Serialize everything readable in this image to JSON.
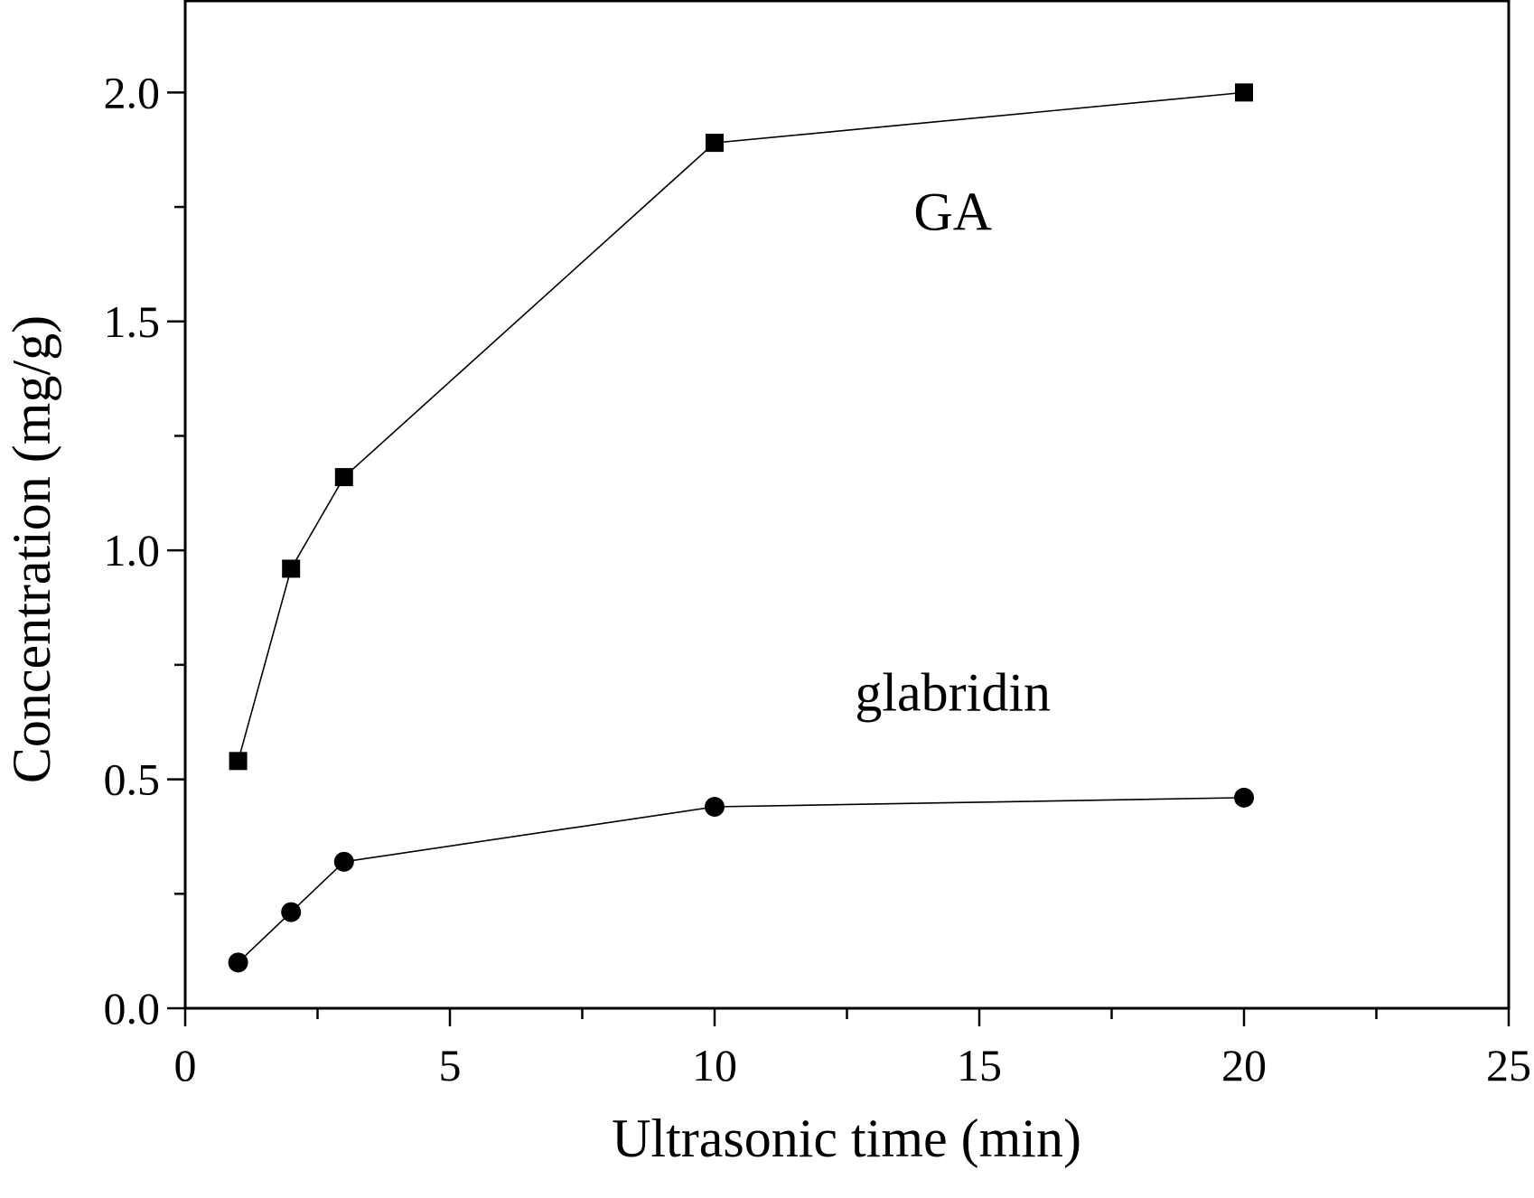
{
  "chart_data": {
    "type": "line",
    "title": "",
    "xlabel": "Ultrasonic time (min)",
    "ylabel": "Concentration (mg/g)",
    "xlim": [
      0,
      25
    ],
    "ylim": [
      0,
      2.2
    ],
    "x_ticks": [
      0,
      5,
      10,
      15,
      20,
      25
    ],
    "x_tick_labels": [
      "0",
      "5",
      "10",
      "15",
      "20",
      "25"
    ],
    "y_ticks": [
      0.0,
      0.5,
      1.0,
      1.5,
      2.0
    ],
    "y_tick_labels": [
      "0.0",
      "0.5",
      "1.0",
      "1.5",
      "2.0"
    ],
    "grid": false,
    "legend": "none",
    "series": [
      {
        "name": "GA",
        "marker": "square",
        "color": "#000000",
        "x": [
          1,
          2,
          3,
          10,
          20
        ],
        "y": [
          0.54,
          0.96,
          1.16,
          1.89,
          2.0
        ]
      },
      {
        "name": "glabridin",
        "marker": "circle",
        "color": "#000000",
        "x": [
          1,
          2,
          3,
          10,
          20
        ],
        "y": [
          0.1,
          0.21,
          0.32,
          0.44,
          0.46
        ]
      }
    ],
    "annotations": [
      {
        "text": "GA",
        "x": 14.5,
        "y": 1.7
      },
      {
        "text": "glabridin",
        "x": 14.5,
        "y": 0.65
      }
    ]
  }
}
